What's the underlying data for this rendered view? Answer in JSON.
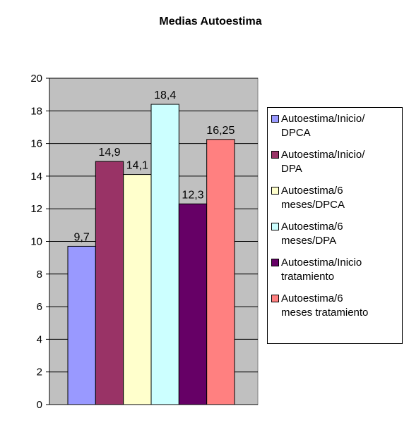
{
  "chart_data": {
    "type": "bar",
    "title": "Medias Autoestima",
    "ylim": [
      0,
      20
    ],
    "ytick_step": 2,
    "grid": true,
    "plot_background": "#c0c0c0",
    "legend_placement": "right",
    "series": [
      {
        "name": "Autoestima/Inicio/\nDPCA",
        "value": 9.7,
        "label": "9,7",
        "color": "#9999ff"
      },
      {
        "name": "Autoestima/Inicio/\nDPA",
        "value": 14.9,
        "label": "14,9",
        "color": "#993366"
      },
      {
        "name": "Autoestima/6\nmeses/DPCA",
        "value": 14.1,
        "label": "14,1",
        "color": "#ffffcc"
      },
      {
        "name": "Autoestima/6\nmeses/DPA",
        "value": 18.4,
        "label": "18,4",
        "color": "#ccffff"
      },
      {
        "name": "Autoestima/Inicio\ntratamiento",
        "value": 12.3,
        "label": "12,3",
        "color": "#660066"
      },
      {
        "name": "Autoestima/6\nmeses tratamiento",
        "value": 16.25,
        "label": "16,25",
        "color": "#ff8080"
      }
    ]
  }
}
